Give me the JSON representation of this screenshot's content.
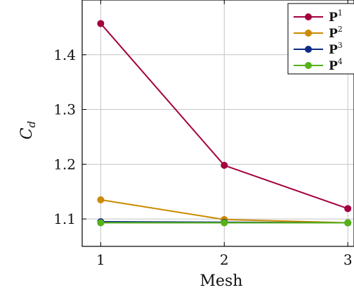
{
  "chart_data": {
    "type": "line",
    "xlabel": "Mesh",
    "ylabel_main": "C",
    "ylabel_sub": "d",
    "x": [
      1,
      2,
      3
    ],
    "x_ticks": [
      "1",
      "2",
      "3"
    ],
    "y_ticks": [
      "1.1",
      "1.2",
      "1.3",
      "1.4"
    ],
    "y_tick_values": [
      1.1,
      1.2,
      1.3,
      1.4
    ],
    "xlim": [
      0.85,
      3.05
    ],
    "ylim": [
      1.05,
      1.5
    ],
    "grid": true,
    "legend_position": "top-right",
    "series": [
      {
        "name": "P",
        "sup": "1",
        "color": "#a3003f",
        "values": [
          1.457,
          1.198,
          1.119
        ]
      },
      {
        "name": "P",
        "sup": "2",
        "color": "#cc8a00",
        "values": [
          1.135,
          1.099,
          1.093
        ]
      },
      {
        "name": "P",
        "sup": "3",
        "color": "#0d2a85",
        "values": [
          1.095,
          1.094,
          1.093
        ]
      },
      {
        "name": "P",
        "sup": "4",
        "color": "#55b219",
        "values": [
          1.093,
          1.093,
          1.093
        ]
      }
    ]
  }
}
